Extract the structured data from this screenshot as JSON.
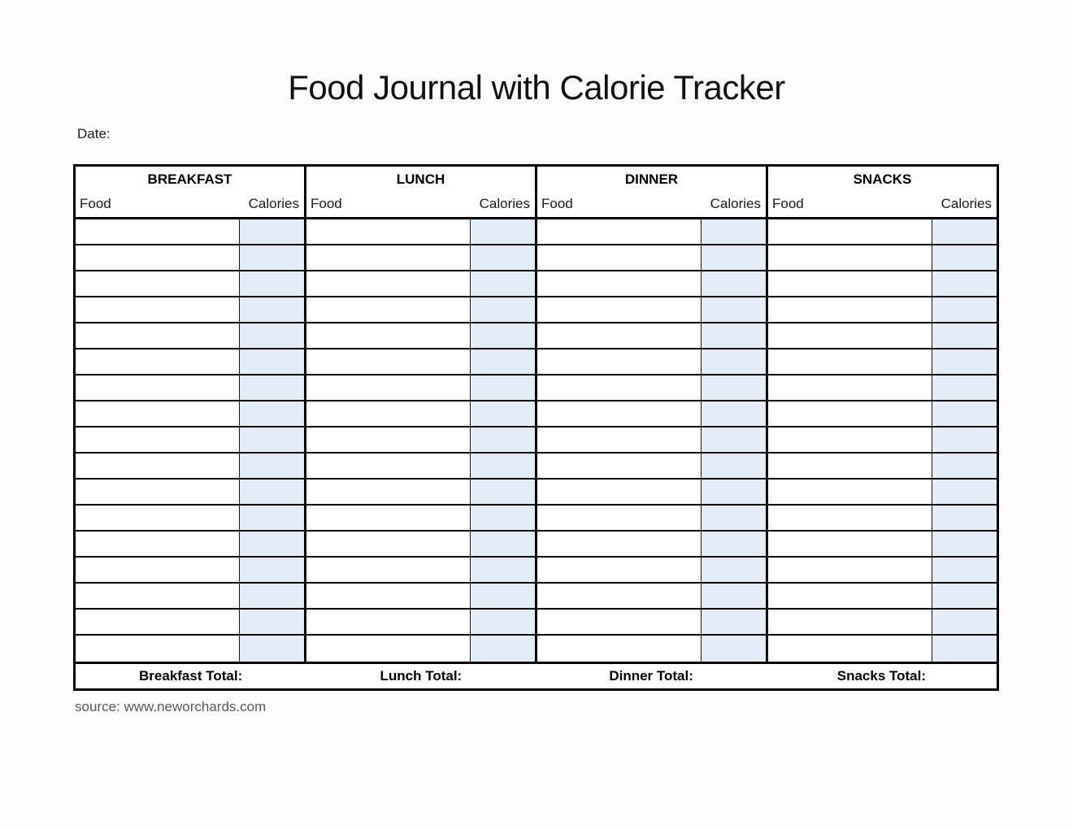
{
  "title": "Food Journal with Calorie Tracker",
  "date_label": "Date:",
  "source_credit": "source: www.neworchards.com",
  "colors": {
    "calorie_column_bg": "#e2edf8",
    "border": "#000000",
    "source_text": "#595959"
  },
  "table": {
    "row_count": 17,
    "sections": [
      {
        "name": "BREAKFAST",
        "food_label": "Food",
        "calories_label": "Calories",
        "total_label": "Breakfast Total:"
      },
      {
        "name": "LUNCH",
        "food_label": "Food",
        "calories_label": "Calories",
        "total_label": "Lunch Total:"
      },
      {
        "name": "DINNER",
        "food_label": "Food",
        "calories_label": "Calories",
        "total_label": "Dinner Total:"
      },
      {
        "name": "SNACKS",
        "food_label": "Food",
        "calories_label": "Calories",
        "total_label": "Snacks Total:"
      }
    ]
  }
}
